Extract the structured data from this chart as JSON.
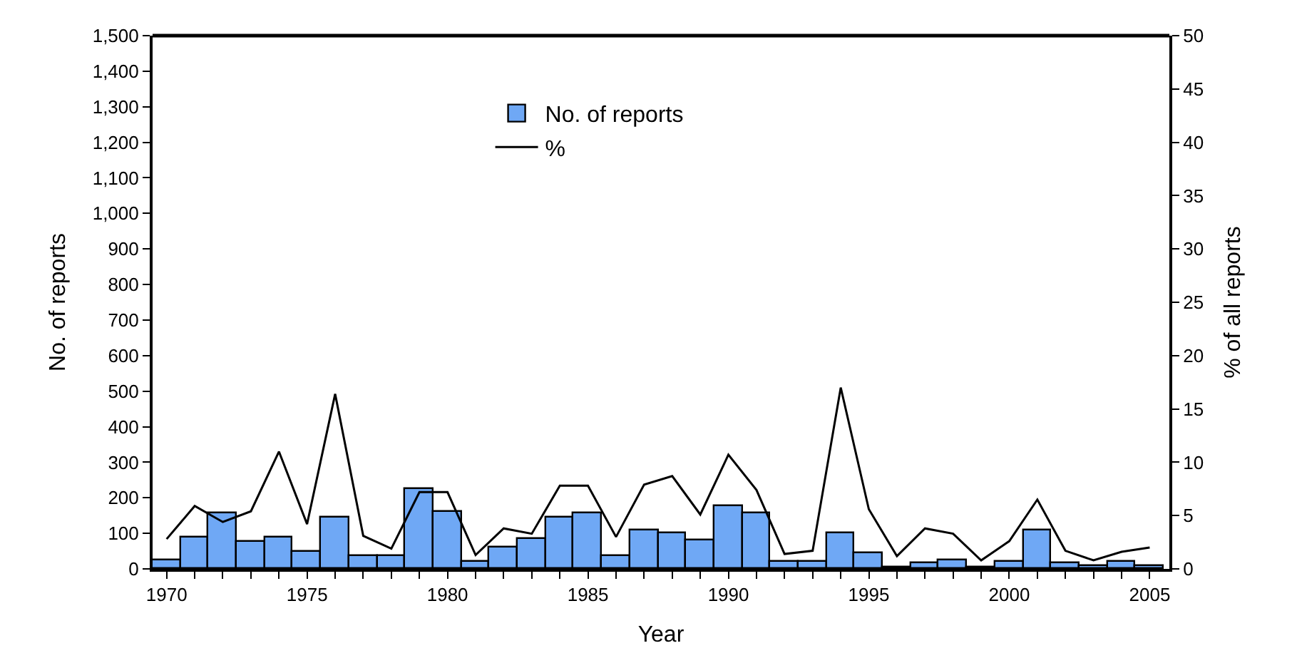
{
  "chart_data": {
    "type": "bar",
    "xlabel": "Year",
    "ylabel": "No. of reports",
    "y2label": "% of all reports",
    "x": [
      1970,
      1971,
      1972,
      1973,
      1974,
      1975,
      1976,
      1977,
      1978,
      1979,
      1980,
      1981,
      1982,
      1983,
      1984,
      1985,
      1986,
      1987,
      1988,
      1989,
      1990,
      1991,
      1992,
      1993,
      1994,
      1995,
      1996,
      1997,
      1998,
      1999,
      2000,
      2001,
      2002,
      2003,
      2004,
      2005
    ],
    "series": [
      {
        "name": "No. of reports",
        "color": "#6fa8f5",
        "values": [
          25,
          90,
          155,
          75,
          90,
          50,
          145,
          35,
          35,
          225,
          160,
          20,
          60,
          85,
          145,
          155,
          35,
          110,
          100,
          80,
          175,
          155,
          20,
          20,
          100,
          45,
          5,
          15,
          25,
          5,
          20,
          110,
          15,
          10,
          20,
          10
        ]
      },
      {
        "name": "%",
        "type": "line",
        "axis": "y2",
        "color": "#000000",
        "values": [
          2.8,
          5.9,
          4.4,
          5.4,
          11.0,
          4.2,
          16.4,
          3.1,
          1.9,
          7.2,
          7.2,
          1.3,
          3.8,
          3.3,
          7.8,
          7.8,
          3.0,
          7.9,
          8.7,
          5.1,
          10.7,
          7.4,
          1.4,
          1.7,
          17.0,
          5.6,
          1.2,
          3.8,
          3.3,
          0.8,
          2.6,
          6.5,
          1.7,
          0.8,
          1.6,
          2.0
        ]
      }
    ],
    "xlim": [
      1969.5,
      2005.7
    ],
    "xticks": [
      1970,
      {
        "value": 1971,
        "label": null
      },
      {
        "value": 1972,
        "label": null
      },
      {
        "value": 1973,
        "label": null
      },
      {
        "value": 1974,
        "label": null
      },
      1975,
      {
        "value": 1976,
        "label": null
      },
      {
        "value": 1977,
        "label": null
      },
      {
        "value": 1978,
        "label": null
      },
      {
        "value": 1979,
        "label": null
      },
      1980,
      {
        "value": 1981,
        "label": null
      },
      {
        "value": 1982,
        "label": null
      },
      {
        "value": 1983,
        "label": null
      },
      {
        "value": 1984,
        "label": null
      },
      1985,
      {
        "value": 1986,
        "label": null
      },
      {
        "value": 1987,
        "label": null
      },
      {
        "value": 1988,
        "label": null
      },
      {
        "value": 1989,
        "label": null
      },
      1990,
      {
        "value": 1991,
        "label": null
      },
      {
        "value": 1992,
        "label": null
      },
      {
        "value": 1993,
        "label": null
      },
      {
        "value": 1994,
        "label": null
      },
      1995,
      {
        "value": 1996,
        "label": null
      },
      {
        "value": 1997,
        "label": null
      },
      {
        "value": 1998,
        "label": null
      },
      {
        "value": 1999,
        "label": null
      },
      2000,
      {
        "value": 2001,
        "label": null
      },
      {
        "value": 2002,
        "label": null
      },
      {
        "value": 2003,
        "label": null
      },
      {
        "value": 2004,
        "label": null
      },
      2005
    ],
    "ylim": [
      0,
      1500
    ],
    "yticks": [
      {
        "value": 0,
        "label": "0"
      },
      {
        "value": 100,
        "label": "100"
      },
      {
        "value": 200,
        "label": "200"
      },
      {
        "value": 300,
        "label": "300"
      },
      {
        "value": 400,
        "label": "400"
      },
      {
        "value": 500,
        "label": "500"
      },
      {
        "value": 600,
        "label": "600"
      },
      {
        "value": 700,
        "label": "700"
      },
      {
        "value": 800,
        "label": "800"
      },
      {
        "value": 900,
        "label": "900"
      },
      {
        "value": 1000,
        "label": "1,000"
      },
      {
        "value": 1100,
        "label": "1,100"
      },
      {
        "value": 1200,
        "label": "1,200"
      },
      {
        "value": 1300,
        "label": "1,300"
      },
      {
        "value": 1400,
        "label": "1,400"
      },
      {
        "value": 1500,
        "label": "1,500"
      }
    ],
    "y2lim": [
      0,
      50
    ],
    "y2ticks": [
      0,
      5,
      10,
      15,
      20,
      25,
      30,
      35,
      40,
      45,
      50
    ],
    "legend": "top",
    "marker": "none",
    "line_style": "solid"
  }
}
